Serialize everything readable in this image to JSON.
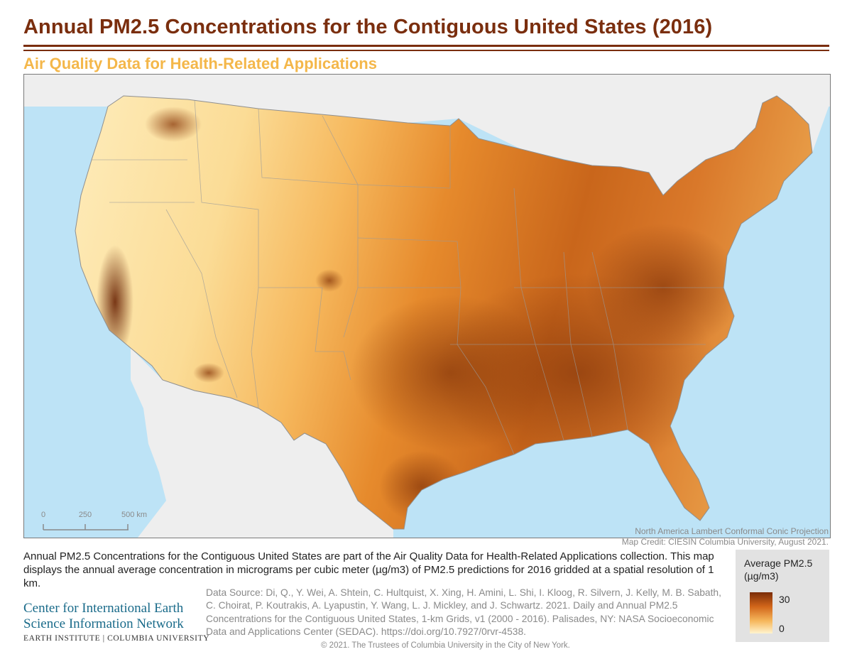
{
  "header": {
    "title": "Annual PM2.5 Concentrations for the Contiguous United States (2016)",
    "subtitle": "Air Quality Data for Health-Related Applications"
  },
  "map": {
    "scale_bar": {
      "labels": [
        "0",
        "250",
        "500 km"
      ]
    },
    "projection": "North America Lambert Conformal Conic Projection",
    "credit": "Map Credit: CIESIN Columbia University, August 2021.",
    "colors": {
      "water": "#bde3f6",
      "land_outside": "#eeeeee",
      "low": "#fff2c4",
      "mid": "#f2a03a",
      "high": "#7a2c08"
    }
  },
  "legend": {
    "title_line1": "Average PM2.5",
    "title_line2": "(µg/m3)",
    "max_label": "30",
    "min_label": "0"
  },
  "description": "Annual PM2.5 Concentrations for the Contiguous United States are part of the Air Quality Data for Health-Related Applications collection. This map displays the annual average concentration in micrograms per cubic meter (µg/m3) of PM2.5 predictions for 2016 gridded at a spatial resolution of 1 km.",
  "organization": {
    "line1": "Center for International Earth",
    "line2": "Science Information Network",
    "line3": "EARTH INSTITUTE | COLUMBIA UNIVERSITY"
  },
  "data_source": "Data Source: Di, Q., Y. Wei, A. Shtein, C. Hultquist, X. Xing, H. Amini, L. Shi, I. Kloog, R. Silvern, J. Kelly, M. B. Sabath, C. Choirat, P. Koutrakis, A. Lyapustin, Y. Wang, L. J. Mickley, and J. Schwartz. 2021. Daily and Annual PM2.5 Concentrations for the Contiguous United States, 1-km Grids, v1 (2000 - 2016). Palisades, NY: NASA Socioeconomic Data and Applications Center (SEDAC). https://doi.org/10.7927/0rvr-4538.",
  "copyright": "© 2021. The Trustees of Columbia University in the City of New York."
}
